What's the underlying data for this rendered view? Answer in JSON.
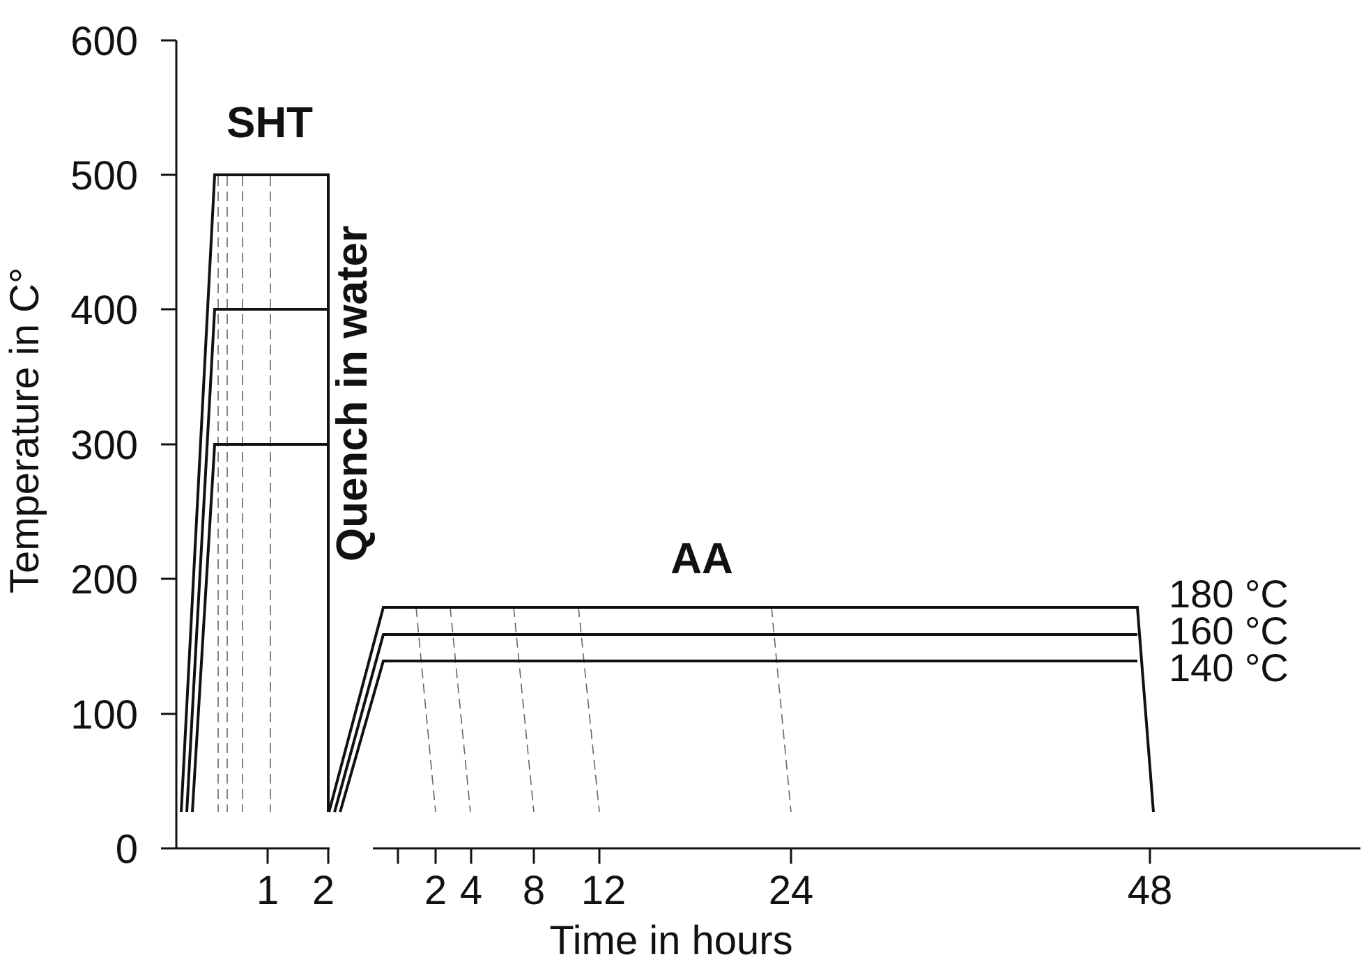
{
  "y_axis": {
    "title": "Temperature in C°",
    "range": [
      0,
      600
    ],
    "ticks": [
      "0",
      "100",
      "200",
      "300",
      "400",
      "500",
      "600"
    ]
  },
  "x_axis": {
    "title": "Time in hours",
    "sht_ticks": [
      "1",
      "2"
    ],
    "aa_ticks": [
      "2",
      "4",
      "8",
      "12",
      "24",
      "48"
    ]
  },
  "stages": {
    "sht": {
      "label": "SHT",
      "temperatures": [
        300,
        400,
        500
      ],
      "duration_h": 2
    },
    "quench": {
      "label": "Quench in water"
    },
    "aa": {
      "label": "AA",
      "temperatures": [
        {
          "value": 180,
          "label": "180 °C"
        },
        {
          "value": 160,
          "label": "160 °C"
        },
        {
          "value": 140,
          "label": "140 °C"
        }
      ],
      "sampling_times_h": [
        2,
        4,
        8,
        12,
        24,
        48
      ]
    }
  },
  "colors": {
    "line": "#111111",
    "dashed": "#666666"
  }
}
